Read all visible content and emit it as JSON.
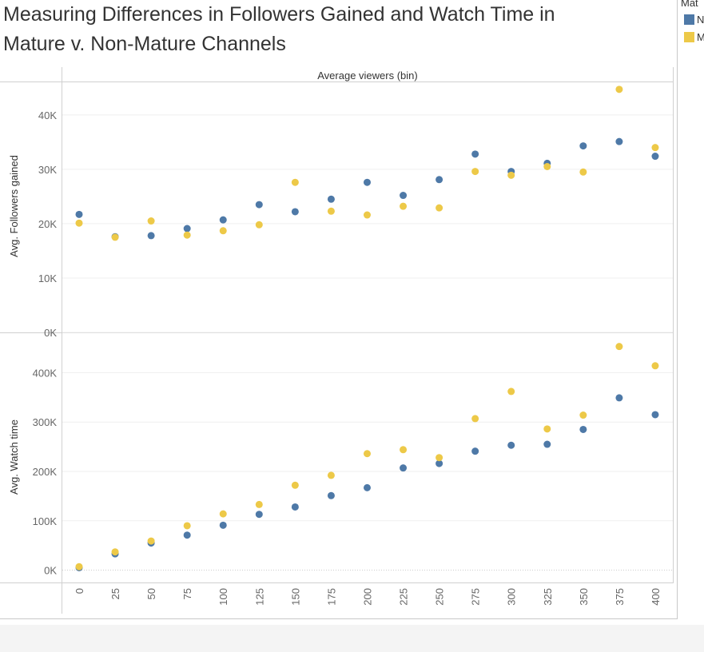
{
  "title_line1": "Measuring Differences in Followers Gained and Watch Time in",
  "title_line2": "Mature v. Non-Mature Channels",
  "legend": {
    "title": "Mat",
    "items": [
      {
        "label": "N",
        "color": "#4e79a7"
      },
      {
        "label": "M",
        "color": "#edc948"
      }
    ]
  },
  "chart_data": {
    "type": "scatter",
    "column_header": "Average viewers (bin)",
    "categories": [
      "0",
      "25",
      "50",
      "75",
      "100",
      "125",
      "150",
      "175",
      "200",
      "225",
      "250",
      "275",
      "300",
      "325",
      "350",
      "375",
      "400"
    ],
    "panels": [
      {
        "ylabel": "Avg. Followers gained",
        "ylim": [
          0,
          46000
        ],
        "ticks": [
          0,
          10000,
          20000,
          30000,
          40000
        ],
        "tick_labels": [
          "0K",
          "10K",
          "20K",
          "30K",
          "40K"
        ],
        "series": [
          {
            "color": "#4e79a7",
            "values": [
              21700,
              17600,
              17800,
              19100,
              20700,
              23500,
              22200,
              24500,
              27600,
              25200,
              28100,
              32800,
              29600,
              31100,
              34300,
              35100,
              32400
            ]
          },
          {
            "color": "#edc948",
            "values": [
              20100,
              17500,
              20500,
              17900,
              18700,
              19800,
              27600,
              22300,
              21600,
              23200,
              22900,
              29600,
              28900,
              30500,
              29500,
              44700,
              34000
            ]
          }
        ]
      },
      {
        "ylabel": "Avg. Watch time",
        "ylim": [
          -25000,
          480000
        ],
        "ticks": [
          0,
          100000,
          200000,
          300000,
          400000
        ],
        "tick_labels": [
          "0K",
          "100K",
          "200K",
          "300K",
          "400K"
        ],
        "series": [
          {
            "color": "#4e79a7",
            "values": [
              5000,
              33000,
              55000,
              71000,
              91000,
              113000,
              128000,
              151000,
              167000,
              207000,
              216000,
              241000,
              253000,
              255000,
              285000,
              349000,
              315000
            ]
          },
          {
            "color": "#edc948",
            "values": [
              7000,
              37000,
              59000,
              90000,
              114000,
              133000,
              172000,
              192000,
              236000,
              244000,
              228000,
              307000,
              362000,
              286000,
              314000,
              453000,
              414000
            ]
          }
        ]
      }
    ]
  }
}
